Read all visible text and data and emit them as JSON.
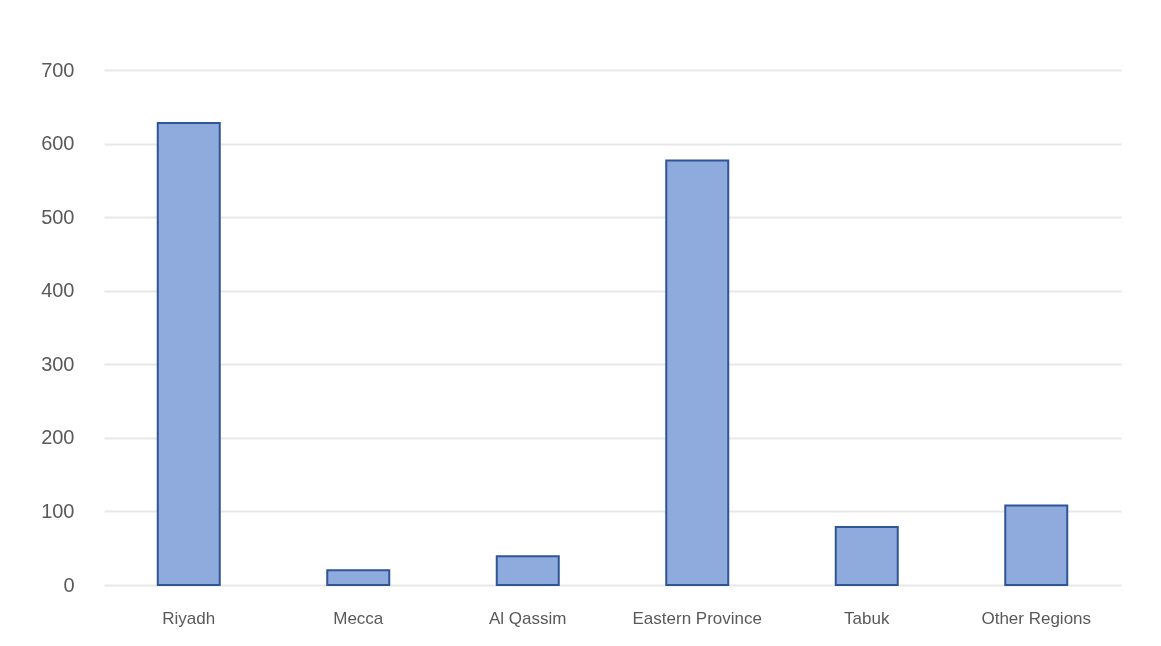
{
  "chart_data": {
    "type": "bar",
    "categories": [
      "Riyadh",
      "Mecca",
      "Al Qassim",
      "Eastern Province",
      "Tabuk",
      "Other Regions"
    ],
    "values": [
      628,
      20,
      39,
      577,
      79,
      108
    ],
    "color": "#8faadc",
    "ylim": [
      0,
      700
    ],
    "yticks": [
      0,
      100,
      200,
      300,
      400,
      500,
      600,
      700
    ],
    "grid": "y"
  }
}
